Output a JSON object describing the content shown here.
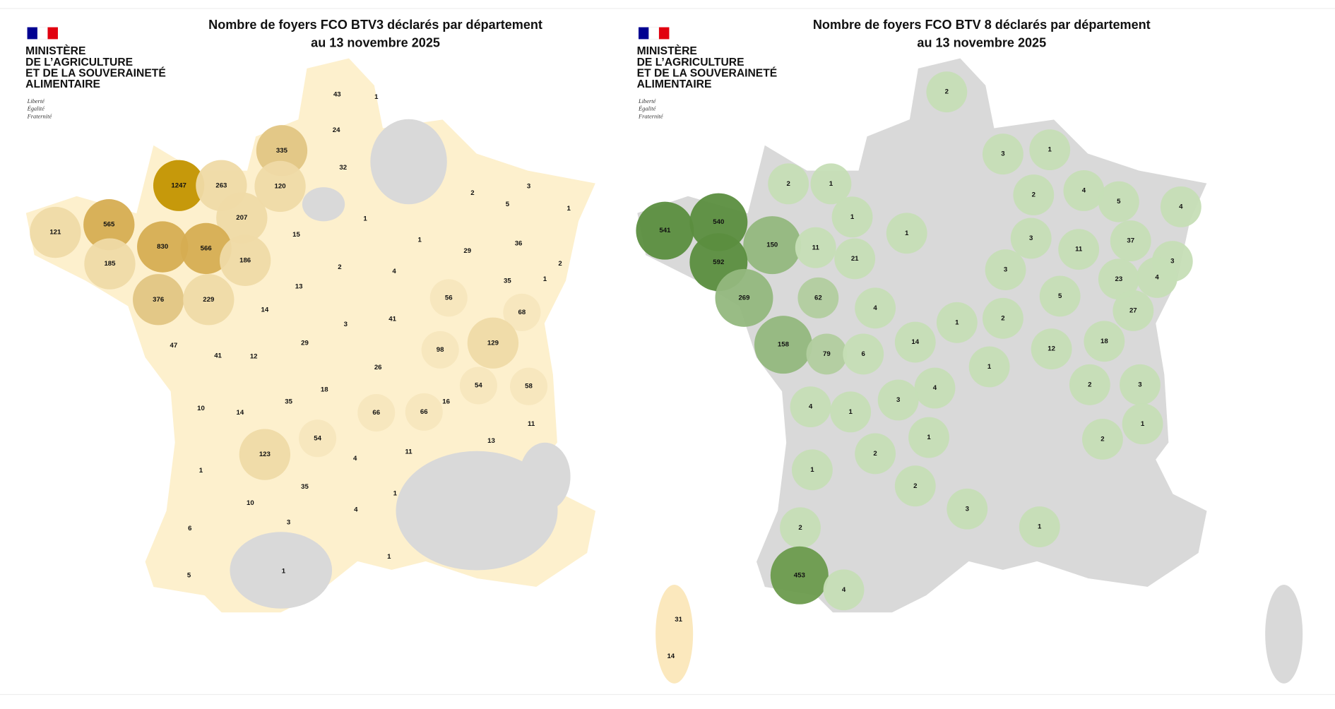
{
  "logo": {
    "lines": [
      "MINISTÈRE",
      "DE L’AGRICULTURE",
      "ET DE LA SOUVERAINETÉ",
      "ALIMENTAIRE"
    ],
    "motto": [
      "Liberté",
      "Égalité",
      "Fraternité"
    ]
  },
  "maps": [
    {
      "title": [
        "Nombre de foyers FCO BTV3 déclarés par département",
        "au 13 novembre 2025"
      ],
      "departments": [
        43,
        1,
        24,
        335,
        32,
        1247,
        263,
        120,
        207,
        1,
        565,
        121,
        15,
        830,
        566,
        186,
        185,
        2,
        4,
        13,
        376,
        229,
        14,
        3,
        41,
        47,
        41,
        12,
        29,
        26,
        98,
        18,
        35,
        10,
        14,
        66,
        66,
        16,
        54,
        58,
        54,
        123,
        4,
        11,
        13,
        11,
        1,
        35,
        1,
        10,
        3,
        4,
        6,
        1,
        1,
        5,
        2,
        3,
        5,
        1,
        1,
        29,
        36,
        2,
        35,
        1,
        56,
        68,
        129,
        31,
        14
      ]
    },
    {
      "title": [
        "Nombre de foyers FCO BTV 8 déclarés par département",
        "au 13 novembre 2025"
      ],
      "departments": [
        2,
        3,
        1,
        2,
        1,
        1,
        1,
        2,
        4,
        5,
        4,
        541,
        540,
        150,
        11,
        21,
        592,
        3,
        11,
        37,
        3,
        3,
        23,
        4,
        269,
        62,
        5,
        4,
        1,
        2,
        27,
        158,
        79,
        6,
        14,
        12,
        18,
        1,
        4,
        2,
        3,
        3,
        4,
        1,
        1,
        1,
        2,
        2,
        1,
        2,
        3,
        2,
        1,
        453,
        4
      ]
    }
  ]
}
